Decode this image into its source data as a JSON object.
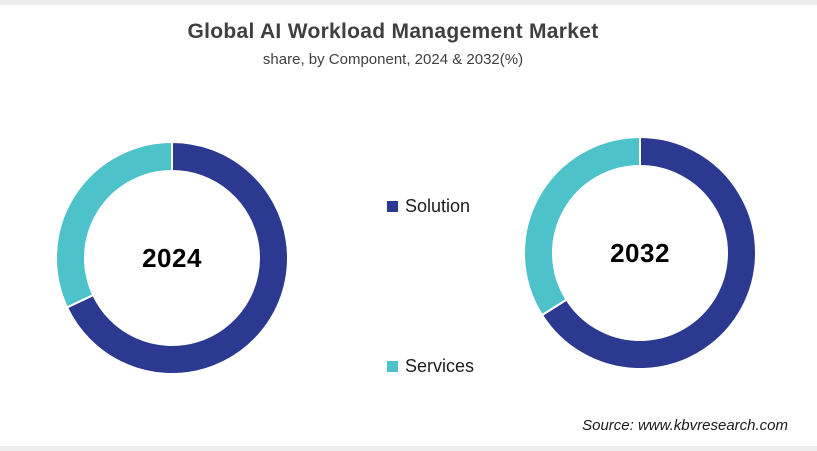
{
  "header": {
    "title": "Global AI Workload Management Market",
    "subtitle": "share, by Component, 2024 & 2032(%)"
  },
  "legend": {
    "items": [
      {
        "label": "Solution",
        "color": "#2B3990"
      },
      {
        "label": "Services",
        "color": "#4EC2CB"
      }
    ]
  },
  "source": {
    "text": "Source: www.kbvresearch.com"
  },
  "chart_data": [
    {
      "type": "pie",
      "subtype": "donut",
      "center_label": "2024",
      "categories": [
        "Solution",
        "Services"
      ],
      "values": [
        68,
        32
      ],
      "units": "%",
      "colors": [
        "#2B3990",
        "#4EC2CB"
      ],
      "start_angle_deg": 0,
      "direction": "clockwise",
      "legend_position": "between-charts"
    },
    {
      "type": "pie",
      "subtype": "donut",
      "center_label": "2032",
      "categories": [
        "Solution",
        "Services"
      ],
      "values": [
        66,
        34
      ],
      "units": "%",
      "colors": [
        "#2B3990",
        "#4EC2CB"
      ],
      "start_angle_deg": 0,
      "direction": "clockwise",
      "legend_position": "between-charts"
    }
  ]
}
